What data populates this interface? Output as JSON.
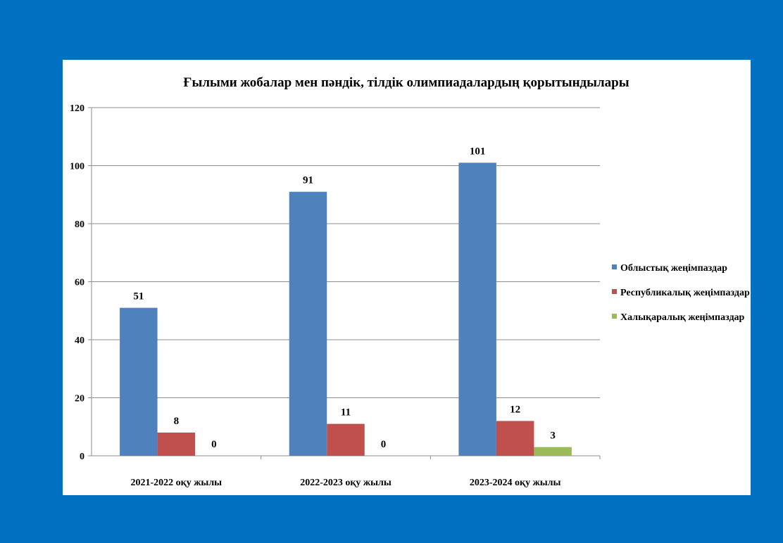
{
  "chart_data": {
    "type": "bar",
    "title": "Ғылыми жобалар мен пәндік, тілдік  олимпиадалардың қорытындылары",
    "categories": [
      "2021-2022 оқу жылы",
      "2022-2023 оқу жылы",
      "2023-2024 оқу жылы"
    ],
    "series": [
      {
        "name": "Облыстық жеңімпаздар",
        "values": [
          51,
          91,
          101
        ],
        "color": "#4f81bd"
      },
      {
        "name": "Республикалық жеңімпаздар",
        "values": [
          8,
          11,
          12
        ],
        "color": "#c0504d"
      },
      {
        "name": "Халықаралық жеңімпаздар",
        "values": [
          0,
          0,
          3
        ],
        "color": "#9bbb59"
      }
    ],
    "y_ticks": [
      0,
      20,
      40,
      60,
      80,
      100,
      120
    ],
    "ylim": [
      0,
      120
    ],
    "xlabel": "",
    "ylabel": "",
    "grid": true,
    "legend_position": "right"
  }
}
